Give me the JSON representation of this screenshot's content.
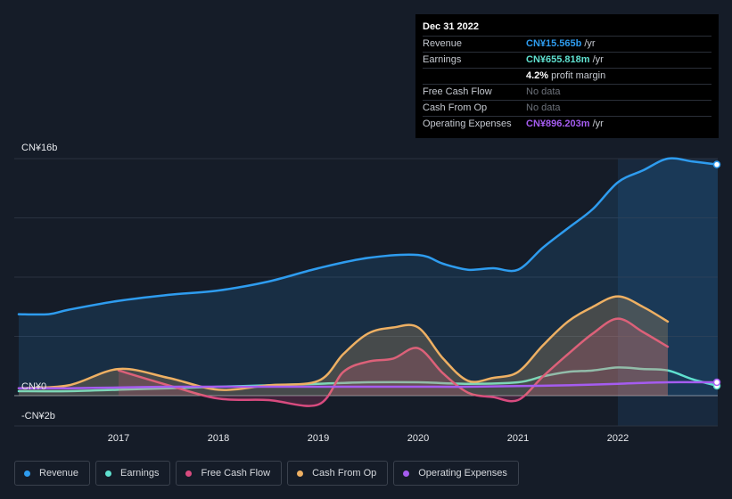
{
  "tooltip": {
    "date": "Dec 31 2022",
    "rows": [
      {
        "label": "Revenue",
        "value": "CN¥15.565b",
        "unit": "/yr",
        "color": "#2e9cef"
      },
      {
        "label": "Earnings",
        "value": "CN¥655.818m",
        "unit": "/yr",
        "color": "#5fe0cf"
      },
      {
        "label": "",
        "value": "4.2%",
        "unit": "profit margin",
        "color": "#ffffff"
      },
      {
        "label": "Free Cash Flow",
        "value": "No data",
        "unit": "",
        "color": "#6d727b"
      },
      {
        "label": "Cash From Op",
        "value": "No data",
        "unit": "",
        "color": "#6d727b"
      },
      {
        "label": "Operating Expenses",
        "value": "CN¥896.203m",
        "unit": "/yr",
        "color": "#a55cf0"
      }
    ]
  },
  "legend": [
    {
      "label": "Revenue",
      "color": "#2e9cef"
    },
    {
      "label": "Earnings",
      "color": "#5fe0cf"
    },
    {
      "label": "Free Cash Flow",
      "color": "#d84b7f"
    },
    {
      "label": "Cash From Op",
      "color": "#eeb063"
    },
    {
      "label": "Operating Expenses",
      "color": "#a55cf0"
    }
  ],
  "chart_data": {
    "type": "line",
    "y_unit": "CN¥ b",
    "ylim": [
      -2,
      16
    ],
    "y_ticks": [
      {
        "value": 16,
        "label": "CN¥16b"
      },
      {
        "value": 0,
        "label": "CN¥0"
      },
      {
        "value": -2,
        "label": "-CN¥2b"
      }
    ],
    "x_ticks": [
      {
        "value": 2017,
        "label": "2017"
      },
      {
        "value": 2018,
        "label": "2018"
      },
      {
        "value": 2019,
        "label": "2019"
      },
      {
        "value": 2020,
        "label": "2020"
      },
      {
        "value": 2021,
        "label": "2021"
      },
      {
        "value": 2022,
        "label": "2022"
      }
    ],
    "xlim": [
      2015.7,
      2023.0
    ],
    "highlight_from": 2022.0,
    "series": [
      {
        "name": "Revenue",
        "color": "#2e9cef",
        "fill": true,
        "x": [
          2016.0,
          2016.3,
          2016.5,
          2017.0,
          2017.5,
          2018.0,
          2018.5,
          2019.0,
          2019.5,
          2020.0,
          2020.25,
          2020.5,
          2020.75,
          2021.0,
          2021.25,
          2021.5,
          2021.75,
          2022.0,
          2022.25,
          2022.5,
          2022.75,
          2023.0
        ],
        "y": [
          5.5,
          5.5,
          5.8,
          6.4,
          6.8,
          7.1,
          7.7,
          8.6,
          9.3,
          9.5,
          8.9,
          8.5,
          8.6,
          8.5,
          10.0,
          11.3,
          12.6,
          14.4,
          15.2,
          16.0,
          15.8,
          15.6
        ]
      },
      {
        "name": "Earnings",
        "color": "#5fe0cf",
        "fill": false,
        "x": [
          2016.0,
          2016.5,
          2017.0,
          2017.5,
          2018.0,
          2018.5,
          2019.0,
          2019.5,
          2020.0,
          2020.5,
          2021.0,
          2021.25,
          2021.5,
          2021.75,
          2022.0,
          2022.25,
          2022.5,
          2022.75,
          2023.0
        ],
        "y": [
          0.3,
          0.3,
          0.4,
          0.5,
          0.6,
          0.7,
          0.8,
          0.9,
          0.9,
          0.8,
          0.9,
          1.3,
          1.6,
          1.7,
          1.9,
          1.8,
          1.7,
          1.1,
          0.66
        ]
      },
      {
        "name": "Free Cash Flow",
        "color": "#d84b7f",
        "fill": true,
        "x": [
          2017.0,
          2017.5,
          2018.0,
          2018.5,
          2019.0,
          2019.25,
          2019.5,
          2019.75,
          2020.0,
          2020.25,
          2020.5,
          2020.75,
          2021.0,
          2021.25,
          2021.5,
          2021.75,
          2022.0,
          2022.25,
          2022.5
        ],
        "y": [
          1.7,
          0.7,
          -0.2,
          -0.3,
          -0.6,
          1.6,
          2.3,
          2.5,
          3.2,
          1.5,
          0.2,
          -0.1,
          -0.3,
          1.3,
          2.8,
          4.2,
          5.2,
          4.3,
          3.3
        ]
      },
      {
        "name": "Cash From Op",
        "color": "#eeb063",
        "fill": true,
        "x": [
          2016.0,
          2016.5,
          2017.0,
          2017.5,
          2018.0,
          2018.5,
          2019.0,
          2019.25,
          2019.5,
          2019.75,
          2020.0,
          2020.25,
          2020.5,
          2020.75,
          2021.0,
          2021.25,
          2021.5,
          2021.75,
          2022.0,
          2022.25,
          2022.5
        ],
        "y": [
          0.5,
          0.7,
          1.8,
          1.2,
          0.4,
          0.7,
          1.0,
          2.8,
          4.2,
          4.6,
          4.6,
          2.5,
          1.0,
          1.2,
          1.6,
          3.4,
          5.0,
          6.0,
          6.7,
          6.0,
          5.0
        ]
      },
      {
        "name": "Operating Expenses",
        "color": "#a55cf0",
        "fill": false,
        "x": [
          2016.0,
          2016.5,
          2017.0,
          2017.5,
          2018.0,
          2018.5,
          2019.0,
          2019.5,
          2020.0,
          2020.5,
          2021.0,
          2021.5,
          2022.0,
          2022.5,
          2023.0
        ],
        "y": [
          0.5,
          0.5,
          0.55,
          0.6,
          0.6,
          0.6,
          0.6,
          0.6,
          0.6,
          0.6,
          0.65,
          0.7,
          0.8,
          0.9,
          0.9
        ]
      }
    ]
  }
}
